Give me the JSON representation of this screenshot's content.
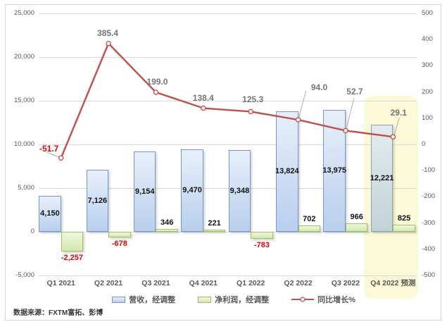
{
  "source_note": "数据来源：FXTM富拓、彭博",
  "colors": {
    "revenue_fill_top": "#e8effa",
    "revenue_fill_bottom": "#b8cfee",
    "revenue_border": "#7796c8",
    "forecast_fill_top": "#e4ebee",
    "forecast_fill_bottom": "#c2d3d8",
    "forecast_border": "#8ba3ad",
    "profit_fill_top": "#eff7dc",
    "profit_fill_bottom": "#d3e9ae",
    "profit_border": "#9dc263",
    "line": "#c0504d",
    "marker_fill": "#fdf3f2",
    "negative_label": "#e60000",
    "positive_label": "#111111",
    "line_label": "#757575",
    "axis_label": "#595959",
    "gridline": "#d9d9d9",
    "highlight": "#fbf9d7",
    "leader": "#aeaeae"
  },
  "chart_data": {
    "type": "combo",
    "categories": [
      "Q1 2021",
      "Q2 2021",
      "Q3 2021",
      "Q4 2021",
      "Q1 2022",
      "Q2 2022",
      "Q3 2022",
      "Q4 2022 预测"
    ],
    "series": [
      {
        "name": "营收，经调整",
        "type": "bar",
        "axis": "left",
        "values": [
          4150,
          7126,
          9154,
          9470,
          9348,
          13824,
          13975,
          12221
        ],
        "labels": [
          "4,150",
          "7,126",
          "9,154",
          "9,470",
          "9,348",
          "13,824",
          "13,975",
          "12,221"
        ]
      },
      {
        "name": "净利润，经调整",
        "type": "bar",
        "axis": "left",
        "values": [
          -2257,
          -678,
          346,
          221,
          -783,
          702,
          966,
          825
        ],
        "labels": [
          "-2,257",
          "-678",
          "346",
          "221",
          "-783",
          "702",
          "966",
          "825"
        ]
      },
      {
        "name": "同比增长%",
        "type": "line",
        "axis": "right",
        "values": [
          -51.7,
          385.4,
          199.0,
          138.4,
          125.3,
          94.0,
          52.7,
          29.1
        ],
        "labels": [
          "-51.7",
          "385.4",
          "199.0",
          "138.4",
          "125.3",
          "94.0",
          "52.7",
          "29.1"
        ]
      }
    ],
    "left_axis": {
      "min": -5000,
      "max": 25000,
      "step": 5000,
      "ticks": [
        "25,000",
        "20,000",
        "15,000",
        "10,000",
        "5,000",
        "0",
        "-5,000"
      ]
    },
    "right_axis": {
      "min": -500,
      "max": 500,
      "step": 100,
      "ticks": [
        "500",
        "400",
        "300",
        "200",
        "100",
        "0",
        "-100",
        "-200",
        "-300",
        "-400",
        "-500"
      ]
    },
    "highlight_category_index": 7,
    "legend_position": "bottom",
    "grid": true
  }
}
